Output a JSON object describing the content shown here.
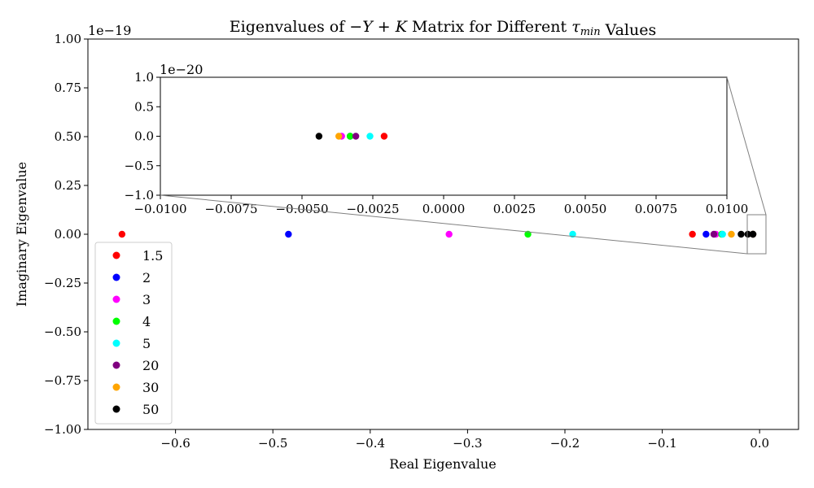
{
  "chart_data": {
    "type": "scatter",
    "title": "Eigenvalues of −Y + K Matrix for Different τmin Values",
    "xlabel": "Real Eigenvalue",
    "ylabel": "Imaginary Eigenvalue",
    "xlim": [
      -0.69,
      0.04
    ],
    "ylim": [
      -1.0,
      1.0
    ],
    "y_scale_label": "1e−19",
    "x_ticks": [
      "−0.6",
      "−0.5",
      "−0.4",
      "−0.3",
      "−0.2",
      "−0.1",
      "0.0"
    ],
    "y_ticks": [
      "1.00",
      "0.75",
      "0.50",
      "0.25",
      "0.00",
      "−0.25",
      "−0.50",
      "−0.75",
      "−1.00"
    ],
    "legend_placement": "lower-left",
    "series": [
      {
        "name": "1.5",
        "color": "#ff0000",
        "x": [
          -0.655,
          -0.069,
          -0.0021
        ],
        "y": [
          0,
          0,
          0
        ]
      },
      {
        "name": "2",
        "color": "#0000ff",
        "x": [
          -0.484,
          -0.055,
          -0.0033
        ],
        "y": [
          0,
          0,
          0
        ]
      },
      {
        "name": "3",
        "color": "#ff00ff",
        "x": [
          -0.319,
          -0.045,
          -0.0036
        ],
        "y": [
          0,
          0,
          0
        ]
      },
      {
        "name": "4",
        "color": "#00ff00",
        "x": [
          -0.238,
          -0.039,
          -0.0033
        ],
        "y": [
          0,
          0,
          0
        ]
      },
      {
        "name": "5",
        "color": "#00ffff",
        "x": [
          -0.192,
          -0.038,
          -0.0026
        ],
        "y": [
          0,
          0,
          0
        ]
      },
      {
        "name": "20",
        "color": "#800080",
        "x": [
          -0.047,
          -0.0031
        ],
        "y": [
          0,
          0
        ]
      },
      {
        "name": "30",
        "color": "#ffa500",
        "x": [
          -0.029,
          -0.0037
        ],
        "y": [
          0,
          0
        ]
      },
      {
        "name": "50",
        "color": "#000000",
        "x": [
          -0.019,
          -0.012,
          -0.0044
        ],
        "y": [
          0,
          0,
          0
        ]
      }
    ],
    "inset": {
      "xlim": [
        -0.01,
        0.01
      ],
      "ylim": [
        -1.0,
        1.0
      ],
      "y_scale_label": "1e−20",
      "x_ticks": [
        "−0.0100",
        "−0.0075",
        "−0.0050",
        "−0.0025",
        "0.0000",
        "0.0025",
        "0.0050",
        "0.0075",
        "0.0100"
      ],
      "y_ticks": [
        "1.0",
        "0.5",
        "0.0",
        "−0.5",
        "−1.0"
      ]
    }
  }
}
